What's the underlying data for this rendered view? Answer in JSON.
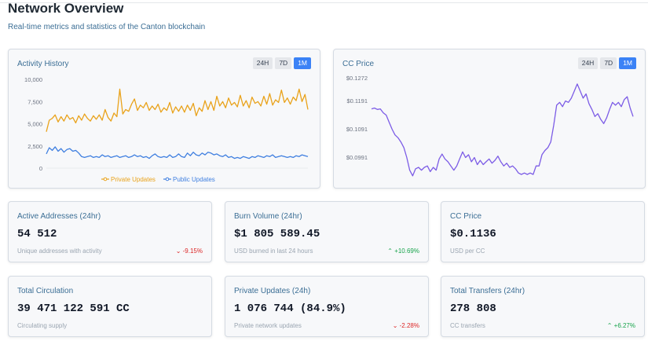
{
  "header": {
    "title": "Network Overview",
    "subtitle": "Real-time metrics and statistics of the Canton blockchain"
  },
  "activity": {
    "title": "Activity History",
    "ranges": [
      "24H",
      "7D",
      "1M"
    ],
    "active_range": "1M",
    "legend": {
      "private": "Private Updates",
      "public": "Public Updates"
    }
  },
  "price_panel": {
    "title": "CC Price",
    "ranges": [
      "24H",
      "7D",
      "1M"
    ],
    "active_range": "1M"
  },
  "colors": {
    "accent": "#3b82f6",
    "private_series": "#e9a21a",
    "public_series": "#3f7fe0",
    "price_series": "#7c5ce6",
    "down": "#dc2626",
    "up": "#16a34a"
  },
  "chart_data": [
    {
      "type": "line",
      "title": "Activity History",
      "ylim": [
        0,
        10000
      ],
      "yticks": [
        "10,000",
        "7,500",
        "5,000",
        "2,500",
        "0"
      ],
      "x": [
        1,
        2,
        3,
        4,
        5,
        6,
        7,
        8,
        9,
        10,
        11,
        12,
        13,
        14,
        15,
        16,
        17,
        18,
        19,
        20,
        21,
        22,
        23,
        24,
        25,
        26,
        27,
        28,
        29,
        30,
        31,
        32,
        33,
        34,
        35,
        36,
        37,
        38,
        39,
        40,
        41,
        42,
        43,
        44,
        45,
        46,
        47,
        48,
        49,
        50,
        51,
        52,
        53,
        54,
        55,
        56,
        57,
        58,
        59,
        60,
        61,
        62,
        63,
        64,
        65,
        66,
        67,
        68,
        69,
        70,
        71,
        72,
        73,
        74,
        75,
        76,
        77,
        78,
        79,
        80,
        81,
        82,
        83,
        84,
        85,
        86,
        87,
        88,
        89,
        90
      ],
      "series": [
        {
          "name": "Private Updates",
          "values": [
            4100,
            5400,
            5600,
            6000,
            5200,
            5800,
            5300,
            6000,
            5500,
            5700,
            5100,
            5900,
            5400,
            6100,
            5600,
            5300,
            5900,
            5500,
            6000,
            5400,
            6600,
            5700,
            5300,
            6200,
            5800,
            8900,
            6100,
            6600,
            6400,
            7200,
            7800,
            6500,
            7100,
            6800,
            7400,
            6500,
            7000,
            6600,
            7200,
            6300,
            6800,
            6500,
            7400,
            6200,
            6900,
            6400,
            7000,
            6300,
            7100,
            6500,
            7300,
            5900,
            6800,
            6400,
            7600,
            6600,
            7500,
            6500,
            8100,
            7000,
            7500,
            6800,
            7900,
            7100,
            7400,
            6900,
            8200,
            7000,
            7600,
            6800,
            8000,
            7300,
            7500,
            7000,
            8100,
            7200,
            8400,
            7100,
            7700,
            7400,
            8800,
            7400,
            7900,
            7200,
            8000,
            7600,
            8900,
            7500,
            8300,
            6600
          ]
        },
        {
          "name": "Public Updates",
          "values": [
            1600,
            2300,
            2000,
            2400,
            1900,
            2200,
            1800,
            2100,
            2200,
            1900,
            2000,
            1700,
            1300,
            1200,
            1300,
            1400,
            1200,
            1300,
            1200,
            1500,
            1300,
            1400,
            1200,
            1300,
            1400,
            1200,
            1300,
            1400,
            1200,
            1300,
            1500,
            1300,
            1400,
            1200,
            1300,
            1100,
            1400,
            1600,
            1300,
            1200,
            1300,
            1200,
            1500,
            1200,
            1300,
            1600,
            1300,
            1200,
            1700,
            1400,
            1800,
            1500,
            1400,
            1700,
            1500,
            1800,
            1700,
            1500,
            1600,
            1400,
            1300,
            1500,
            1200,
            1300,
            1100,
            1200,
            1100,
            1300,
            1200,
            1100,
            1300,
            1200,
            1400,
            1300,
            1200,
            1400,
            1300,
            1500,
            1200,
            1300,
            1400,
            1300,
            1200,
            1300,
            1200,
            1400,
            1300,
            1500,
            1400,
            1300
          ]
        }
      ]
    },
    {
      "type": "line",
      "title": "CC Price",
      "ylim": [
        0.0919,
        0.1272
      ],
      "yticks": [
        "$0.1272",
        "$0.1191",
        "$0.1091",
        "$0.0991"
      ],
      "ytick_values": [
        0.1272,
        0.1191,
        0.1091,
        0.0991
      ],
      "x": [
        1,
        2,
        3,
        4,
        5,
        6,
        7,
        8,
        9,
        10,
        11,
        12,
        13,
        14,
        15,
        16,
        17,
        18,
        19,
        20,
        21,
        22,
        23,
        24,
        25,
        26,
        27,
        28,
        29,
        30,
        31,
        32,
        33,
        34,
        35,
        36,
        37,
        38,
        39,
        40,
        41,
        42,
        43,
        44,
        45,
        46,
        47,
        48,
        49,
        50,
        51,
        52,
        53,
        54,
        55,
        56,
        57,
        58,
        59,
        60,
        61,
        62,
        63,
        64,
        65,
        66,
        67,
        68,
        69,
        70,
        71,
        72,
        73,
        74,
        75,
        76,
        77,
        78,
        79,
        80,
        81,
        82,
        83,
        84,
        85,
        86,
        87,
        88,
        89,
        90
      ],
      "series": [
        {
          "values": [
            0.1162,
            0.1165,
            0.116,
            0.1162,
            0.1148,
            0.114,
            0.1115,
            0.109,
            0.107,
            0.106,
            0.1045,
            0.1025,
            0.099,
            0.0945,
            0.0925,
            0.095,
            0.0955,
            0.0945,
            0.0955,
            0.096,
            0.094,
            0.0955,
            0.0945,
            0.0985,
            0.1002,
            0.0985,
            0.0975,
            0.096,
            0.0945,
            0.096,
            0.0985,
            0.101,
            0.099,
            0.1,
            0.0975,
            0.099,
            0.0965,
            0.098,
            0.0965,
            0.0975,
            0.0985,
            0.097,
            0.098,
            0.0995,
            0.0975,
            0.096,
            0.097,
            0.0955,
            0.096,
            0.095,
            0.0935,
            0.093,
            0.0935,
            0.093,
            0.0935,
            0.093,
            0.096,
            0.096,
            0.1,
            0.1015,
            0.1025,
            0.1045,
            0.1105,
            0.1175,
            0.1185,
            0.117,
            0.119,
            0.1185,
            0.12,
            0.1225,
            0.125,
            0.1225,
            0.12,
            0.1215,
            0.118,
            0.116,
            0.1135,
            0.1145,
            0.1125,
            0.111,
            0.113,
            0.116,
            0.1185,
            0.1175,
            0.1185,
            0.117,
            0.1195,
            0.1205,
            0.1165,
            0.1135
          ]
        }
      ]
    }
  ],
  "cards": [
    {
      "title": "Active Addresses (24hr)",
      "value": "54 512",
      "sub": "Unique addresses with activity",
      "change": "-9.15%",
      "direction": "down",
      "arrow": "⌄"
    },
    {
      "title": "Burn Volume (24hr)",
      "value": "$1 805 589.45",
      "sub": "USD burned in last 24 hours",
      "change": "+10.69%",
      "direction": "up",
      "arrow": "⌃"
    },
    {
      "title": "CC Price",
      "value": "$0.1136",
      "sub": "USD per CC",
      "change": "",
      "direction": "",
      "arrow": ""
    },
    {
      "title": "Total Circulation",
      "value": "39 471 122 591 CC",
      "sub": "Circulating supply",
      "change": "",
      "direction": "",
      "arrow": ""
    },
    {
      "title": "Private Updates (24h)",
      "value": "1 076 744 (84.9%)",
      "sub": "Private network updates",
      "change": "-2.28%",
      "direction": "down",
      "arrow": "⌄"
    },
    {
      "title": "Total Transfers (24hr)",
      "value": "278 808",
      "sub": "CC transfers",
      "change": "+6.27%",
      "direction": "up",
      "arrow": "⌃"
    }
  ]
}
